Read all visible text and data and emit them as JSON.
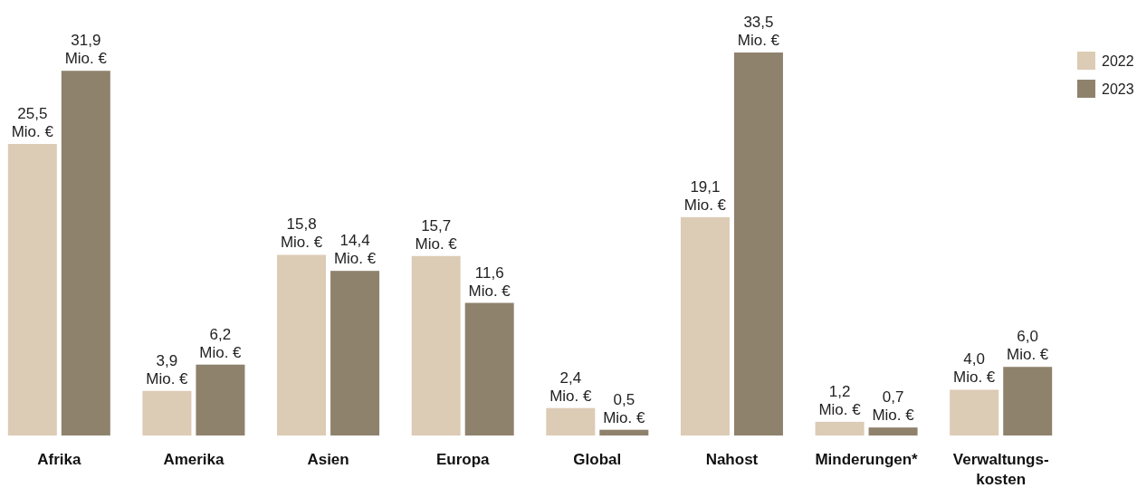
{
  "chart_data": {
    "type": "bar",
    "categories": [
      "Afrika",
      "Amerika",
      "Asien",
      "Europa",
      "Global",
      "Nahost",
      "Minderungen*",
      "Verwaltungs-kosten"
    ],
    "series": [
      {
        "name": "2022",
        "color": "#dccbb5",
        "values": [
          25.5,
          3.9,
          15.8,
          15.7,
          2.4,
          19.1,
          1.2,
          4.0
        ],
        "value_labels": [
          "25,5 Mio. €",
          "3,9 Mio. €",
          "15,8 Mio. €",
          "15,7 Mio. €",
          "2,4 Mio. €",
          "19,1 Mio. €",
          "1,2 Mio. €",
          "4,0 Mio. €"
        ]
      },
      {
        "name": "2023",
        "color": "#8f826d",
        "values": [
          31.9,
          6.2,
          14.4,
          11.6,
          0.5,
          33.5,
          0.7,
          6.0
        ],
        "value_labels": [
          "31,9 Mio. €",
          "6,2 Mio. €",
          "14,4 Mio. €",
          "11,6 Mio. €",
          "0,5 Mio. €",
          "33,5 Mio. €",
          "0,7 Mio. €",
          "6,0 Mio. €"
        ]
      }
    ],
    "legend": "top right"
  }
}
